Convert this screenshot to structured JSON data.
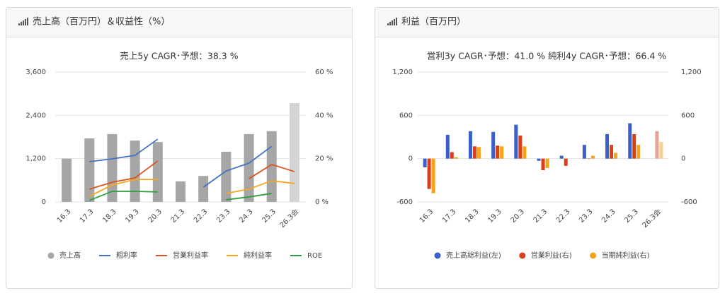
{
  "chart_data": [
    {
      "type": "bar",
      "panel_title": "売上高（百万円）＆収益性（%）",
      "title": "売上5y CAGR･予想：38.3 %",
      "categories": [
        "16.3",
        "17.3",
        "18.3",
        "19.3",
        "20.3",
        "21.3",
        "22.3",
        "23.3",
        "24.3",
        "25.3",
        "26.3会"
      ],
      "ylim": [
        0,
        3600
      ],
      "yticks": [
        0,
        {
          "value": 1200,
          "label": "1,200"
        },
        {
          "value": 2400,
          "label": "2,400"
        },
        {
          "value": 3600,
          "label": "3,600"
        }
      ],
      "y2lim": [
        0,
        60
      ],
      "y2ticks": [
        {
          "value": 0,
          "label": "0 %"
        },
        {
          "value": 20,
          "label": "20 %"
        },
        {
          "value": 40,
          "label": "40 %"
        },
        {
          "value": 60,
          "label": "60 %"
        }
      ],
      "grid": true,
      "series": [
        {
          "name": "売上高",
          "kind": "bar",
          "color": "#a6a6a6",
          "colors": [
            "#a6a6a6",
            "#a6a6a6",
            "#a6a6a6",
            "#a6a6a6",
            "#a6a6a6",
            "#a6a6a6",
            "#a6a6a6",
            "#a6a6a6",
            "#a6a6a6",
            "#a6a6a6",
            "#d4d4d4"
          ],
          "values": [
            1200,
            1760,
            1880,
            1700,
            1660,
            570,
            720,
            1390,
            1880,
            1960,
            2740
          ]
        },
        {
          "name": "粗利率",
          "kind": "line",
          "axis": "y2",
          "color": "#4472c4",
          "values": [
            null,
            18.6,
            19.9,
            21.5,
            29,
            null,
            6.8,
            14.3,
            17.9,
            25.7,
            null
          ]
        },
        {
          "name": "営業利益率",
          "kind": "line",
          "axis": "y2",
          "color": "#d9531e",
          "values": [
            null,
            5.9,
            9.1,
            11.1,
            18.9,
            null,
            null,
            null,
            10.7,
            17.3,
            14
          ]
        },
        {
          "name": "純利益率",
          "kind": "line",
          "axis": "y2",
          "color": "#f5a623",
          "values": [
            null,
            2.6,
            7.8,
            10.4,
            10.4,
            null,
            null,
            3.9,
            5.9,
            9.8,
            8.5
          ]
        },
        {
          "name": "ROE",
          "kind": "line",
          "axis": "y2",
          "color": "#2e9e3f",
          "values": [
            null,
            0.7,
            4.9,
            4.9,
            4.6,
            null,
            null,
            1,
            2.3,
            3.9,
            null
          ]
        }
      ]
    },
    {
      "type": "bar",
      "panel_title": "利益（百万円）",
      "title": "営利3y CAGR･予想：41.0 %  純利4y CAGR･予想：66.4 %",
      "categories": [
        "16.3",
        "17.3",
        "18.3",
        "19.3",
        "20.3",
        "21.3",
        "22.3",
        "23.3",
        "24.3",
        "25.3",
        "26.3会"
      ],
      "ylim": [
        -600,
        1200
      ],
      "yticks": [
        -600,
        0,
        600,
        {
          "value": 1200,
          "label": "1,200"
        }
      ],
      "y2lim": [
        -600,
        1200
      ],
      "y2ticks": [
        -600,
        0,
        600,
        {
          "value": 1200,
          "label": "1,200"
        }
      ],
      "grid": true,
      "series": [
        {
          "name": "売上高総利益(左)",
          "kind": "bar",
          "color": "#3b5fc8",
          "colors": [
            "#3b5fc8",
            "#3b5fc8",
            "#3b5fc8",
            "#3b5fc8",
            "#3b5fc8",
            "#3b5fc8",
            "#3b5fc8",
            "#3b5fc8",
            "#3b5fc8",
            "#3b5fc8",
            "#9db0e4"
          ],
          "values": [
            -120,
            330,
            380,
            370,
            470,
            -30,
            40,
            190,
            340,
            490,
            null
          ]
        },
        {
          "name": "営業利益(右)",
          "kind": "bar",
          "axis": "y2",
          "color": "#d9401a",
          "colors": [
            "#d9401a",
            "#d9401a",
            "#d9401a",
            "#d9401a",
            "#d9401a",
            "#d9401a",
            "#d9401a",
            "#d9401a",
            "#d9401a",
            "#d9401a",
            "#e8a292"
          ],
          "values": [
            -420,
            90,
            170,
            180,
            320,
            -160,
            -100,
            0,
            190,
            340,
            380
          ]
        },
        {
          "name": "当期純利益(右)",
          "kind": "bar",
          "axis": "y2",
          "color": "#f5a31a",
          "colors": [
            "#f5a31a",
            "#f5a31a",
            "#f5a31a",
            "#f5a31a",
            "#f5a31a",
            "#f5a31a",
            "#f5a31a",
            "#f5a31a",
            "#f5a31a",
            "#f5a31a",
            "#f8d08c"
          ],
          "values": [
            -480,
            20,
            160,
            170,
            170,
            -130,
            null,
            40,
            80,
            190,
            230
          ]
        }
      ]
    }
  ]
}
